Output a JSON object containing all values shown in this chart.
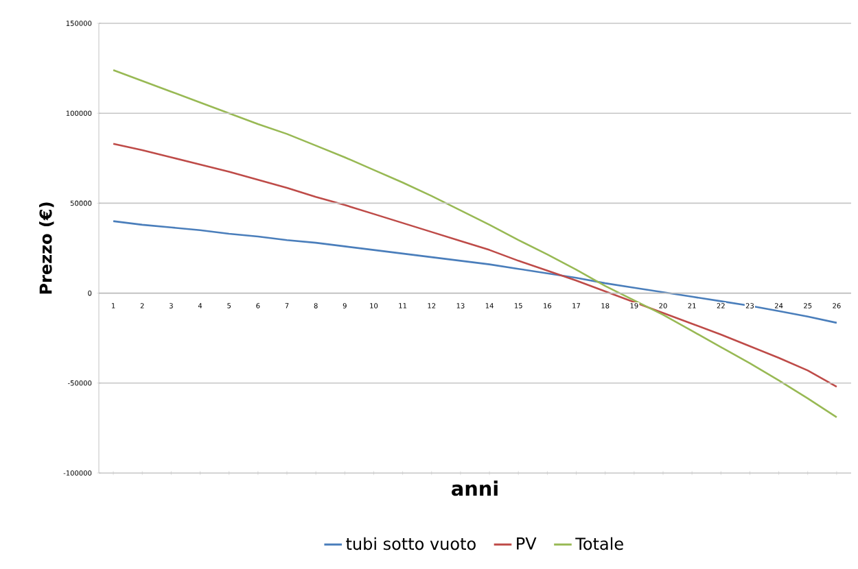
{
  "chart_data": {
    "type": "line",
    "xlabel": "anni",
    "ylabel": "Prezzo (€)",
    "categories": [
      "1",
      "2",
      "3",
      "4",
      "5",
      "6",
      "7",
      "8",
      "9",
      "10",
      "11",
      "12",
      "13",
      "14",
      "15",
      "16",
      "17",
      "18",
      "19",
      "20",
      "21",
      "22",
      "23",
      "24",
      "25",
      "26"
    ],
    "series": [
      {
        "name": "tubi sotto vuoto",
        "color": "#4a7ebb",
        "values": [
          40000,
          38000,
          36500,
          35000,
          33000,
          31500,
          29500,
          28000,
          26000,
          24000,
          22000,
          20000,
          18000,
          16000,
          13500,
          11000,
          8500,
          5500,
          3000,
          500,
          -2000,
          -4500,
          -7000,
          -10000,
          -13000,
          -16500
        ]
      },
      {
        "name": "PV",
        "color": "#be4b48",
        "values": [
          83000,
          79500,
          75500,
          71500,
          67500,
          63000,
          58500,
          53500,
          49000,
          44000,
          39000,
          34000,
          29000,
          24000,
          18000,
          12500,
          7000,
          1000,
          -5000,
          -11000,
          -17000,
          -23000,
          -29500,
          -36000,
          -43000,
          -52000
        ]
      },
      {
        "name": "Totale",
        "color": "#98b954",
        "values": [
          124000,
          118000,
          112000,
          106000,
          100000,
          94000,
          88500,
          82000,
          75500,
          68500,
          61500,
          54000,
          46000,
          38000,
          29500,
          21500,
          13000,
          4000,
          -4000,
          -12000,
          -21000,
          -30000,
          -39000,
          -48500,
          -58500,
          -69000
        ]
      }
    ],
    "ylim": [
      -100000,
      150000
    ],
    "yticks": [
      -100000,
      -50000,
      0,
      50000,
      100000,
      150000
    ],
    "grid": "y",
    "legend": "bottom",
    "marker": "none",
    "line_style": "solid"
  }
}
